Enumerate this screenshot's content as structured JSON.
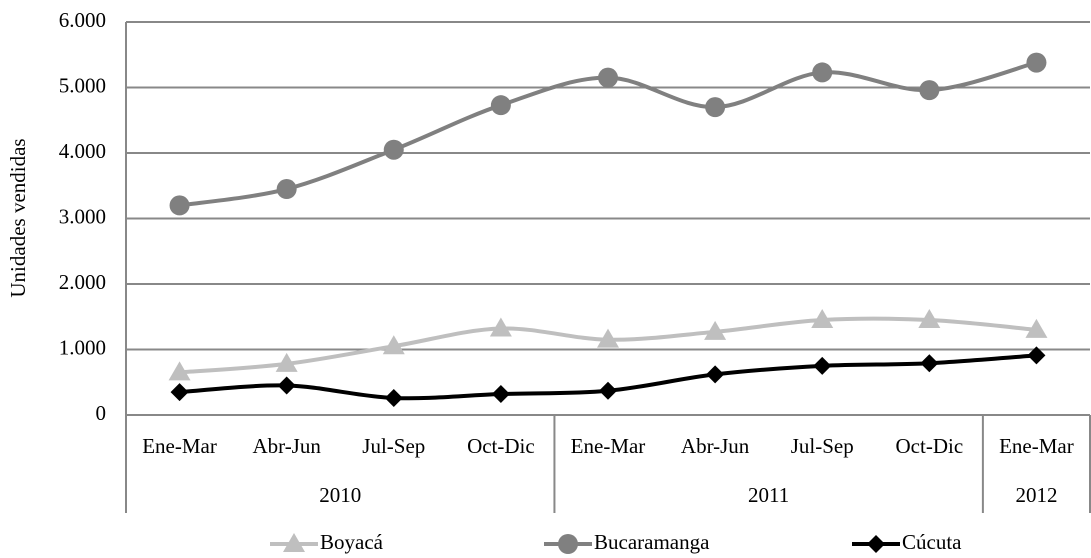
{
  "chart_data": {
    "type": "line",
    "y_label": "Unidades vendidas",
    "category_groups": [
      {
        "label": "2010",
        "categories": [
          "Ene-Mar",
          "Abr-Jun",
          "Jul-Sep",
          "Oct-Dic"
        ]
      },
      {
        "label": "2011",
        "categories": [
          "Ene-Mar",
          "Abr-Jun",
          "Jul-Sep",
          "Oct-Dic"
        ]
      },
      {
        "label": "2012",
        "categories": [
          "Ene-Mar"
        ]
      }
    ],
    "series": [
      {
        "name": "Boyacá",
        "color": "#bfbfbf",
        "marker": "triangle",
        "values": [
          650,
          780,
          1050,
          1320,
          1150,
          1270,
          1450,
          1450,
          1300
        ]
      },
      {
        "name": "Bucaramanga",
        "color": "#808080",
        "marker": "circle",
        "values": [
          3200,
          3450,
          4050,
          4730,
          5150,
          4700,
          5230,
          4960,
          5380
        ]
      },
      {
        "name": "Cúcuta",
        "color": "#000000",
        "marker": "diamond",
        "values": [
          350,
          450,
          260,
          320,
          370,
          620,
          750,
          790,
          910
        ]
      }
    ],
    "ylim": [
      0,
      6000
    ],
    "yticks": [
      0,
      {
        "value": 1000,
        "label": "1.000"
      },
      {
        "value": 2000,
        "label": "2.000"
      },
      {
        "value": 3000,
        "label": "3.000"
      },
      {
        "value": 4000,
        "label": "4.000"
      },
      {
        "value": 5000,
        "label": "5.000"
      },
      {
        "value": 6000,
        "label": "6.000"
      }
    ],
    "grid": true,
    "smooth": true,
    "legend": "bottom"
  }
}
